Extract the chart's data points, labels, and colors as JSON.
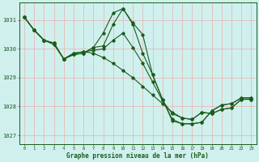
{
  "title": "Graphe pression niveau de la mer (hPa)",
  "bg_color": "#d0f0ee",
  "grid_color": "#e8b0b0",
  "line_color": "#1a5c1a",
  "marker": "D",
  "markersize": 1.8,
  "linewidth": 0.8,
  "xlim": [
    -0.5,
    23.5
  ],
  "ylim": [
    1026.7,
    1031.6
  ],
  "yticks": [
    1027,
    1028,
    1029,
    1030,
    1031
  ],
  "xticks": [
    0,
    1,
    2,
    3,
    4,
    5,
    6,
    7,
    8,
    9,
    10,
    11,
    12,
    13,
    14,
    15,
    16,
    17,
    18,
    19,
    20,
    21,
    22,
    23
  ],
  "series": [
    [
      1031.1,
      1030.65,
      1030.3,
      1030.2,
      1029.65,
      1029.8,
      1029.85,
      1030.05,
      1030.55,
      1031.25,
      1031.4,
      1030.9,
      1030.5,
      1029.1,
      1028.25,
      1027.55,
      1027.4,
      1027.4,
      1027.45,
      1027.85,
      1028.05,
      1028.1,
      1028.3,
      1028.3
    ],
    [
      1031.1,
      1030.65,
      1030.3,
      1030.2,
      1029.65,
      1029.8,
      1029.85,
      1030.05,
      1030.1,
      1030.85,
      1031.4,
      1030.85,
      1029.85,
      1029.1,
      1028.25,
      1027.5,
      1027.4,
      1027.4,
      1027.45,
      1027.85,
      1028.05,
      1028.1,
      1028.3,
      1028.3
    ],
    [
      1031.1,
      1030.65,
      1030.3,
      1030.2,
      1029.65,
      1029.85,
      1029.9,
      1029.95,
      1030.0,
      1030.3,
      1030.55,
      1030.05,
      1029.5,
      1028.85,
      1028.2,
      1027.75,
      1027.6,
      1027.55,
      1027.8,
      1027.75,
      1027.9,
      1027.95,
      1028.25,
      1028.25
    ],
    [
      1031.1,
      1030.65,
      1030.3,
      1030.15,
      1029.65,
      1029.85,
      1029.9,
      1029.85,
      1029.7,
      1029.5,
      1029.25,
      1029.0,
      1028.7,
      1028.4,
      1028.1,
      1027.8,
      1027.6,
      1027.55,
      1027.8,
      1027.75,
      1027.9,
      1027.95,
      1028.25,
      1028.25
    ]
  ]
}
